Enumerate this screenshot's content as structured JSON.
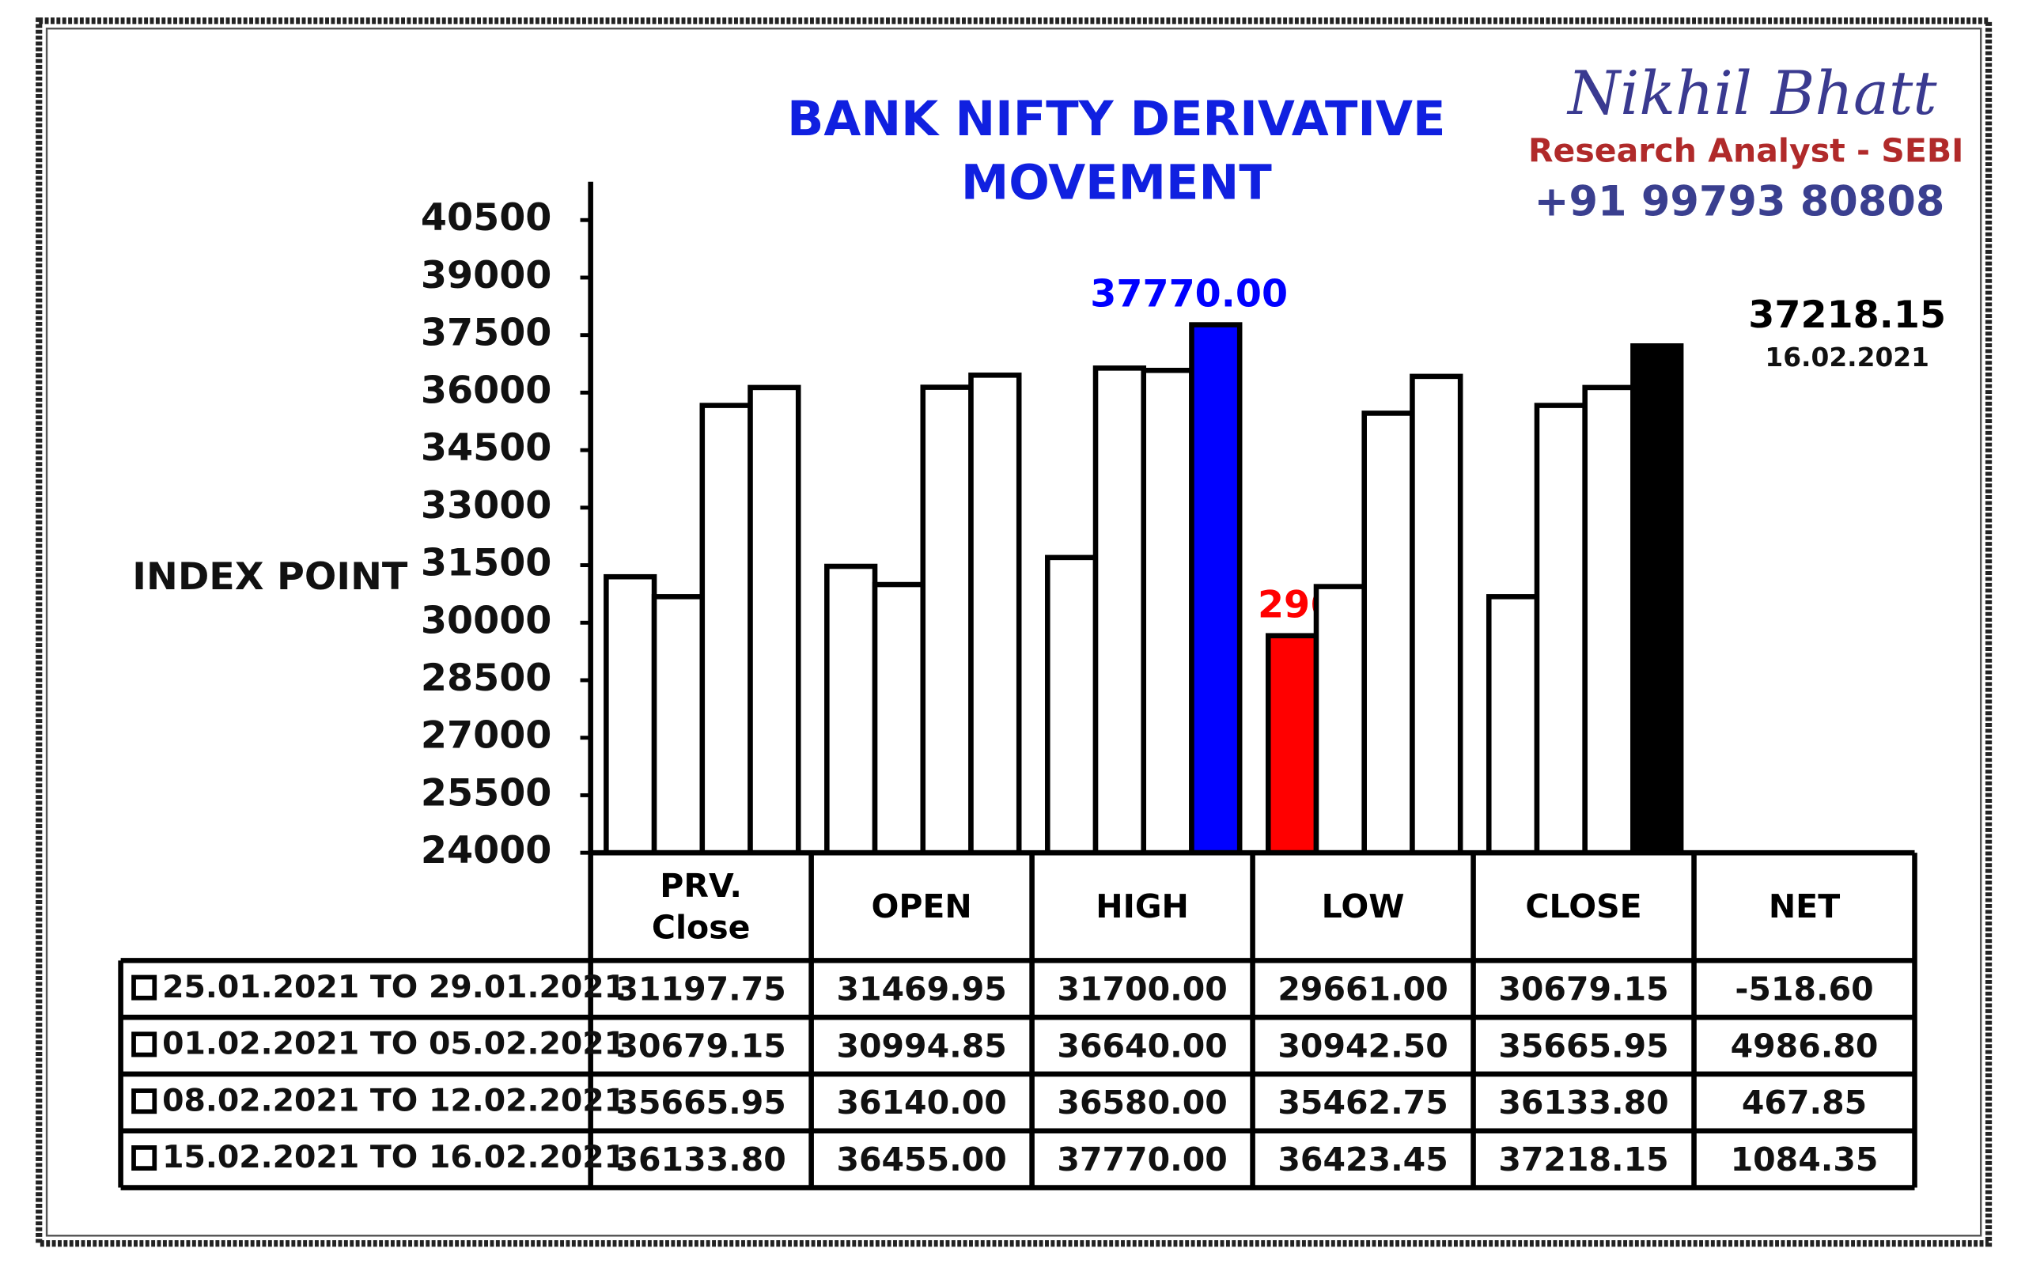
{
  "chart_data": {
    "type": "bar",
    "title": [
      "BANK NIFTY DERIVATIVE",
      "MOVEMENT"
    ],
    "brand": {
      "name": "Nikhil Bhatt",
      "role": "Research Analyst - SEBI",
      "phone": "+91 99793 80808"
    },
    "ylabel": "INDEX POINT",
    "categories": [
      "PRV. Close",
      "OPEN",
      "HIGH",
      "LOW",
      "CLOSE"
    ],
    "net_header": "NET",
    "ylim": [
      24000,
      41500
    ],
    "yticks": [
      24000,
      25500,
      27000,
      28500,
      30000,
      31500,
      33000,
      34500,
      36000,
      37500,
      39000,
      40500
    ],
    "annotation": "16.02.2021",
    "series": [
      {
        "name": "25.01.2021 TO 29.01.2021",
        "values": [
          31197.75,
          31469.95,
          31700,
          29661,
          30679.15
        ],
        "value_labels": [
          "31197.75",
          "31469.95",
          "31700.00",
          "29661.00",
          "30679.15"
        ],
        "colors": [
          "#ffffff",
          "#ffffff",
          "#ffffff",
          "#ff0000",
          "#ffffff"
        ],
        "net": -518.6,
        "net_label": "-518.60"
      },
      {
        "name": "01.02.2021 TO 05.02.2021",
        "values": [
          30679.15,
          30994.85,
          36640,
          30942.5,
          35665.95
        ],
        "value_labels": [
          "30679.15",
          "30994.85",
          "36640.00",
          "30942.50",
          "35665.95"
        ],
        "colors": [
          "#ffffff",
          "#ffffff",
          "#ffffff",
          "#ffffff",
          "#ffffff"
        ],
        "net": 4986.8,
        "net_label": "4986.80"
      },
      {
        "name": "08.02.2021 TO 12.02.2021",
        "values": [
          35665.95,
          36140,
          36580,
          35462.75,
          36133.8
        ],
        "value_labels": [
          "35665.95",
          "36140.00",
          "36580.00",
          "35462.75",
          "36133.80"
        ],
        "colors": [
          "#ffffff",
          "#ffffff",
          "#ffffff",
          "#ffffff",
          "#ffffff"
        ],
        "net": 467.85,
        "net_label": "467.85"
      },
      {
        "name": "15.02.2021 TO 16.02.2021",
        "values": [
          36133.8,
          36455,
          37770,
          36423.45,
          37218.15
        ],
        "value_labels": [
          "36133.80",
          "36455.00",
          "37770.00",
          "36423.45",
          "37218.15"
        ],
        "colors": [
          "#ffffff",
          "#ffffff",
          "#0000ff",
          "#ffffff",
          "#000000"
        ],
        "net": 1084.35,
        "net_label": "1084.35"
      }
    ]
  }
}
